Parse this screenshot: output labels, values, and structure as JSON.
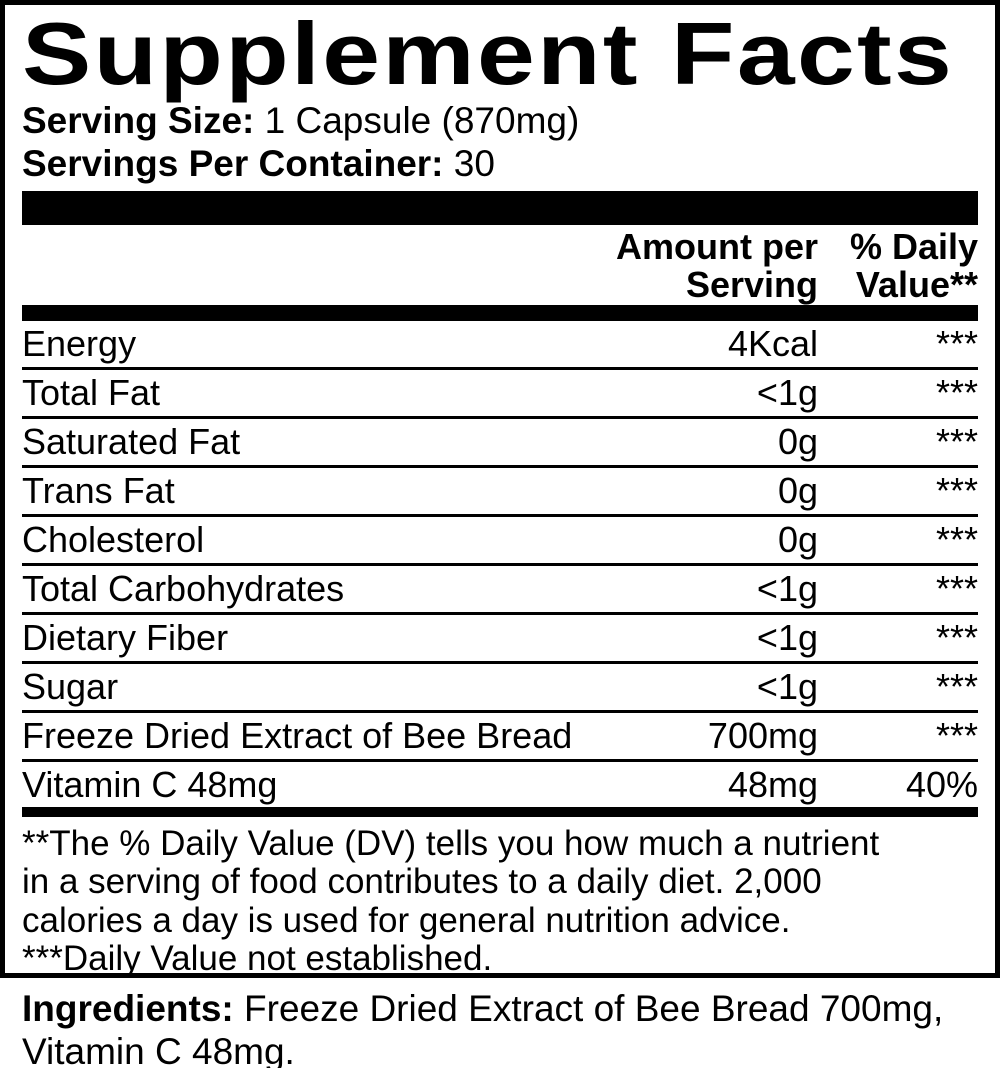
{
  "label": {
    "title": "Supplement Facts",
    "serving_size": {
      "label": "Serving Size:",
      "value": " 1 Capsule (870mg)"
    },
    "servings_per_container": {
      "label": "Servings Per Container:",
      "value": " 30"
    },
    "table": {
      "header": {
        "amount": "Amount per\nServing",
        "dv": "% Daily\nValue**"
      },
      "rows": [
        {
          "name": "Energy",
          "amount": "4Kcal",
          "dv": "***"
        },
        {
          "name": "Total Fat",
          "amount": "<1g",
          "dv": "***"
        },
        {
          "name": "Saturated Fat",
          "amount": "0g",
          "dv": "***"
        },
        {
          "name": "Trans Fat",
          "amount": "0g",
          "dv": "***"
        },
        {
          "name": "Cholesterol",
          "amount": "0g",
          "dv": "***"
        },
        {
          "name": "Total Carbohydrates",
          "amount": "<1g",
          "dv": "***"
        },
        {
          "name": "Dietary Fiber",
          "amount": "<1g",
          "dv": "***"
        },
        {
          "name": "Sugar",
          "amount": "<1g",
          "dv": "***"
        },
        {
          "name": "Freeze Dried Extract of Bee Bread",
          "amount": "700mg",
          "dv": "***"
        },
        {
          "name": "Vitamin C 48mg",
          "amount": "48mg",
          "dv": "40%"
        }
      ]
    },
    "footnotes": {
      "dv_note": "**The % Daily Value (DV) tells you how much a nutrient\nin a serving of food contributes to a daily diet. 2,000\ncalories a day is used for general nutrition advice.",
      "not_established_note": "***Daily Value not established."
    },
    "colors": {
      "text": "#000000",
      "background": "#ffffff"
    }
  },
  "ingredients": {
    "label": "Ingredients:",
    "value": " Freeze Dried Extract of Bee Bread 700mg, Vitamin C 48mg."
  }
}
